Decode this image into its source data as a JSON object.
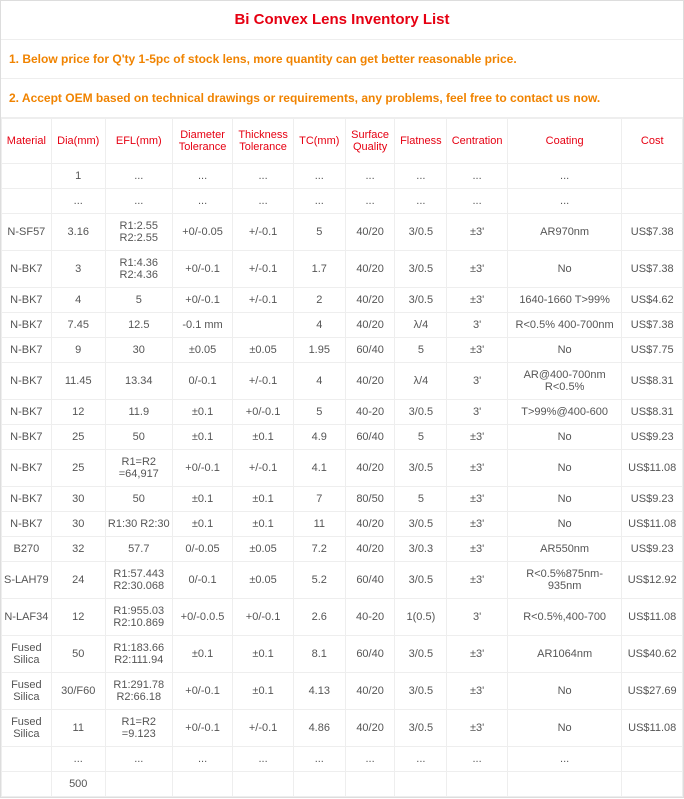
{
  "title": "Bi Convex Lens Inventory List",
  "notes": [
    "1. Below price for Q'ty 1-5pc of stock lens, more quantity can get better reasonable price.",
    "2. Accept OEM based on technical drawings or requirements, any problems, feel free to contact us now."
  ],
  "columns": [
    "Material",
    "Dia(mm)",
    "EFL(mm)",
    "Diameter Tolerance",
    "Thickness Tolerance",
    "TC(mm)",
    "Surface Quality",
    "Flatness",
    "Centration",
    "Coating",
    "Cost"
  ],
  "rows": [
    [
      "",
      "1",
      "...",
      "...",
      "...",
      "...",
      "...",
      "...",
      "...",
      "...",
      ""
    ],
    [
      "",
      "...",
      "...",
      "...",
      "...",
      "...",
      "...",
      "...",
      "...",
      "...",
      ""
    ],
    [
      "N-SF57",
      "3.16",
      "R1:2.55 R2:2.55",
      "+0/-0.05",
      "+/-0.1",
      "5",
      "40/20",
      "3/0.5",
      "±3'",
      "AR970nm",
      "US$7.38"
    ],
    [
      "N-BK7",
      "3",
      "R1:4.36 R2:4.36",
      "+0/-0.1",
      "+/-0.1",
      "1.7",
      "40/20",
      "3/0.5",
      "±3'",
      "No",
      "US$7.38"
    ],
    [
      "N-BK7",
      "4",
      "5",
      "+0/-0.1",
      "+/-0.1",
      "2",
      "40/20",
      "3/0.5",
      "±3'",
      "1640-1660 T>99%",
      "US$4.62"
    ],
    [
      "N-BK7",
      "7.45",
      "12.5",
      "-0.1 mm",
      "",
      "4",
      "40/20",
      "λ/4",
      "3'",
      "R<0.5% 400-700nm",
      "US$7.38"
    ],
    [
      "N-BK7",
      "9",
      "30",
      "±0.05",
      "±0.05",
      "1.95",
      "60/40",
      "5",
      "±3'",
      "No",
      "US$7.75"
    ],
    [
      "N-BK7",
      "11.45",
      "13.34",
      "0/-0.1",
      "+/-0.1",
      "4",
      "40/20",
      "λ/4",
      "3'",
      "AR@400-700nm R<0.5%",
      "US$8.31"
    ],
    [
      "N-BK7",
      "12",
      "11.9",
      "±0.1",
      "+0/-0.1",
      "5",
      "40-20",
      "3/0.5",
      "3'",
      "T>99%@400-600",
      "US$8.31"
    ],
    [
      "N-BK7",
      "25",
      "50",
      "±0.1",
      "±0.1",
      "4.9",
      "60/40",
      "5",
      "±3'",
      "No",
      "US$9.23"
    ],
    [
      "N-BK7",
      "25",
      "R1=R2 =64,917",
      "+0/-0.1",
      "+/-0.1",
      "4.1",
      "40/20",
      "3/0.5",
      "±3'",
      "No",
      "US$11.08"
    ],
    [
      "N-BK7",
      "30",
      "50",
      "±0.1",
      "±0.1",
      "7",
      "80/50",
      "5",
      "±3'",
      "No",
      "US$9.23"
    ],
    [
      "N-BK7",
      "30",
      "R1:30 R2:30",
      "±0.1",
      "±0.1",
      "11",
      "40/20",
      "3/0.5",
      "±3'",
      "No",
      "US$11.08"
    ],
    [
      "B270",
      "32",
      "57.7",
      "0/-0.05",
      "±0.05",
      "7.2",
      "40/20",
      "3/0.3",
      "±3'",
      "AR550nm",
      "US$9.23"
    ],
    [
      "S-LAH79",
      "24",
      "R1:57.443 R2:30.068",
      "0/-0.1",
      "±0.05",
      "5.2",
      "60/40",
      "3/0.5",
      "±3'",
      "R<0.5%875nm-935nm",
      "US$12.92"
    ],
    [
      "N-LAF34",
      "12",
      "R1:955.03 R2:10.869",
      "+0/-0.0.5",
      "+0/-0.1",
      "2.6",
      "40-20",
      "1(0.5)",
      "3'",
      "R<0.5%,400-700",
      "US$11.08"
    ],
    [
      "Fused Silica",
      "50",
      "R1:183.66 R2:111.94",
      "±0.1",
      "±0.1",
      "8.1",
      "60/40",
      "3/0.5",
      "±3'",
      "AR1064nm",
      "US$40.62"
    ],
    [
      "Fused Silica",
      "30/F60",
      "R1:291.78 R2:66.18",
      "+0/-0.1",
      "±0.1",
      "4.13",
      "40/20",
      "3/0.5",
      "±3'",
      "No",
      "US$27.69"
    ],
    [
      "Fused Silica",
      "11",
      "R1=R2 =9.123",
      "+0/-0.1",
      "+/-0.1",
      "4.86",
      "40/20",
      "3/0.5",
      "±3'",
      "No",
      "US$11.08"
    ],
    [
      "",
      "...",
      "...",
      "...",
      "...",
      "...",
      "...",
      "...",
      "...",
      "...",
      ""
    ],
    [
      "",
      "500",
      "",
      "",
      "",
      "",
      "",
      "",
      "",
      "",
      ""
    ]
  ]
}
